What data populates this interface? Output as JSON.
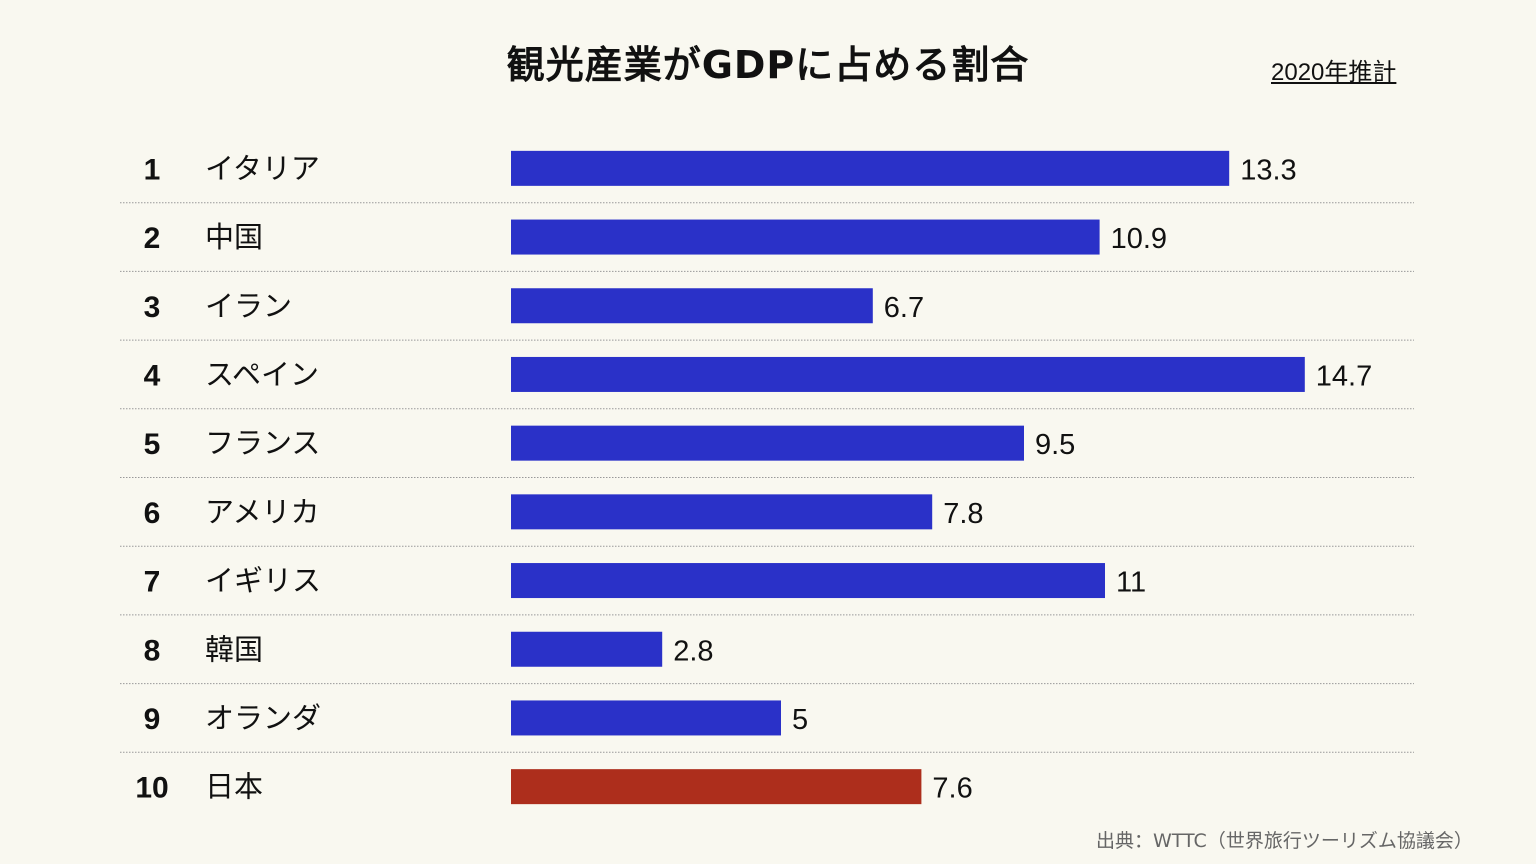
{
  "chart_data": {
    "type": "bar",
    "orientation": "horizontal",
    "title": "観光産業がGDPに占める割合",
    "subtitle": "2020年推計",
    "source": "出典：WTTC（世界旅行ツーリズム協議会）",
    "xlabel": "",
    "ylabel": "",
    "unit": "%",
    "grid": false,
    "xlim": [
      0,
      15
    ],
    "ranks": [
      "1",
      "2",
      "3",
      "4",
      "5",
      "6",
      "7",
      "8",
      "9",
      "10"
    ],
    "categories": [
      "イタリア",
      "中国",
      "イラン",
      "スペイン",
      "フランス",
      "アメリカ",
      "イギリス",
      "韓国",
      "オランダ",
      "日本"
    ],
    "values": [
      13.3,
      10.9,
      6.7,
      14.7,
      9.5,
      7.8,
      11,
      2.8,
      5,
      7.6
    ],
    "value_labels": [
      "13.3",
      "10.9",
      "6.7",
      "14.7",
      "9.5",
      "7.8",
      "11",
      "2.8",
      "5",
      "7.6"
    ],
    "highlight_index": 9,
    "colors": {
      "bar": "#2a31c8",
      "highlight": "#ad2e1c"
    }
  }
}
